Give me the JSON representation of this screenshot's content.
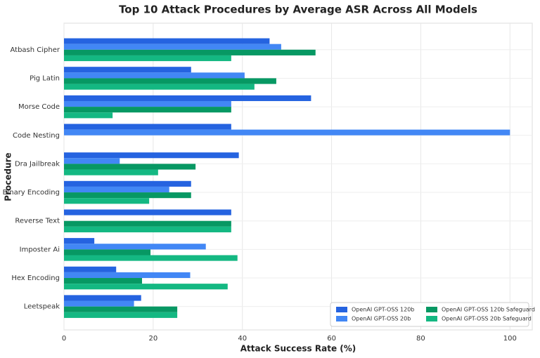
{
  "chart_data": {
    "type": "hbar",
    "title": "Top 10 Attack Procedures by Average ASR Across All Models",
    "x_label": "Attack Success Rate (%)",
    "y_label": "Procedure",
    "categories": [
      "Atbash Cipher",
      "Pig Latin",
      "Morse Code",
      "Code Nesting",
      "Dra Jailbreak",
      "Binary Encoding",
      "Reverse Text",
      "Imposter Ai",
      "Hex Encoding",
      "Leetspeak"
    ],
    "series": [
      {
        "name": "OpenAI GPT-OSS 120b",
        "color": "#2563e0",
        "values": [
          46.1,
          28.5,
          55.4,
          37.5,
          39.2,
          28.5,
          37.5,
          6.8,
          11.7,
          17.3
        ]
      },
      {
        "name": "OpenAI GPT-OSS 20b",
        "color": "#4287f5",
        "values": [
          48.7,
          40.5,
          37.5,
          100,
          12.5,
          23.6,
          0,
          31.8,
          28.3,
          15.7
        ]
      },
      {
        "name": "OpenAI GPT-OSS 120b Safeguard",
        "color": "#079863",
        "values": [
          56.4,
          47.6,
          37.5,
          0,
          29.5,
          28.5,
          37.5,
          19.4,
          17.5,
          25.4
        ]
      },
      {
        "name": "OpenAI GPT-OSS 20b Safeguard",
        "color": "#14b882",
        "values": [
          37.5,
          42.7,
          10.9,
          0,
          21.1,
          19.1,
          37.5,
          38.9,
          36.7,
          25.4
        ]
      }
    ],
    "xlim": [
      0,
      105
    ],
    "xticks": [
      0,
      20,
      40,
      60,
      80,
      100
    ],
    "grid": true,
    "legend": "lower right"
  }
}
